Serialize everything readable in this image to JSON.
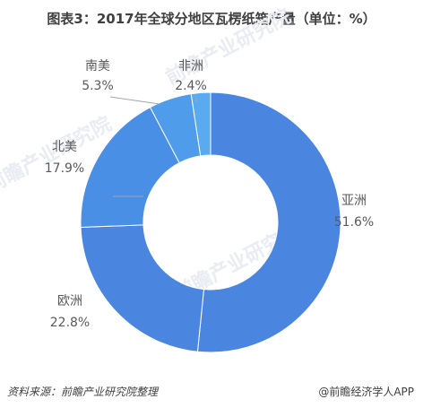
{
  "title": "图表3：2017年全球分地区瓦楞纸箱产量（单位：%）",
  "footer": {
    "source": "资料来源：前瞻产业研究院整理",
    "brand": "@前瞻经济学人APP"
  },
  "watermark": "前瞻产业研究院",
  "chart_data": {
    "type": "pie",
    "variant": "donut",
    "title": "图表3：2017年全球分地区瓦楞纸箱产量（单位：%）",
    "unit": "%",
    "slices": [
      {
        "name": "亚洲",
        "value": 51.6,
        "value_label": "51.6%",
        "color": "#4a86e0"
      },
      {
        "name": "欧洲",
        "value": 22.8,
        "value_label": "22.8%",
        "color": "#4a86e0"
      },
      {
        "name": "北美",
        "value": 17.9,
        "value_label": "17.9%",
        "color": "#4a8fe6"
      },
      {
        "name": "南美",
        "value": 5.3,
        "value_label": "5.3%",
        "color": "#4f9cea"
      },
      {
        "name": "非洲",
        "value": 2.4,
        "value_label": "2.4%",
        "color": "#5aaaf0"
      }
    ],
    "start_angle_deg": 0,
    "direction": "clockwise",
    "legend": "none"
  }
}
